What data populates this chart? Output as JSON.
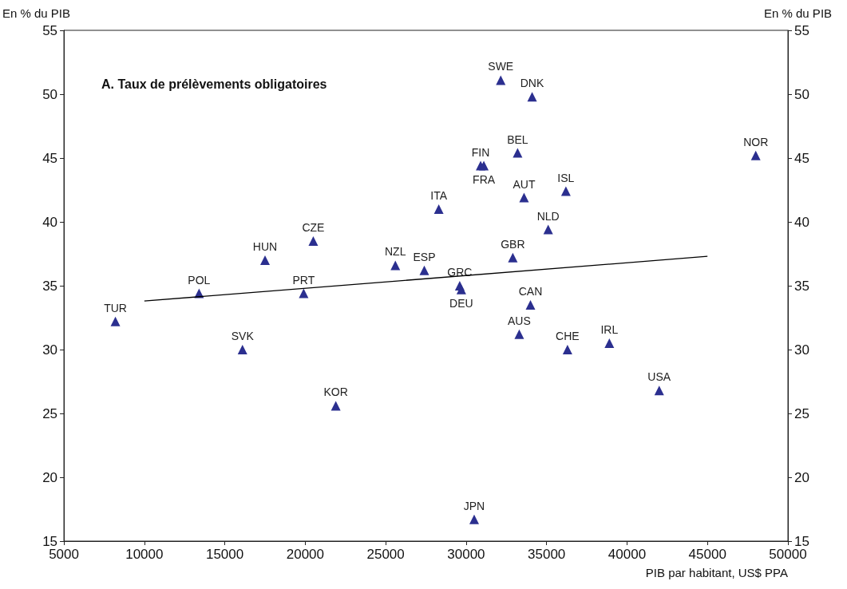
{
  "chart_data": {
    "type": "scatter",
    "title": "A. Taux de prélèvements obligatoires",
    "xlabel": "PIB par habitant, US$ PPA",
    "ylabel": "En % du PIB",
    "y2label": "En % du PIB",
    "xlim": [
      5000,
      50000
    ],
    "xticks": [
      5000,
      10000,
      15000,
      20000,
      25000,
      30000,
      35000,
      40000,
      45000,
      50000
    ],
    "ylim": [
      15,
      55
    ],
    "yticks": [
      15,
      20,
      25,
      30,
      35,
      40,
      45,
      50,
      55
    ],
    "y2lim": [
      15,
      55
    ],
    "y2ticks": [
      15,
      20,
      25,
      30,
      35,
      40,
      45,
      50,
      55
    ],
    "grid": false,
    "series": [
      {
        "color": "#2b2f8f",
        "marker": "triangle",
        "x": [
          8200,
          13400,
          16100,
          17500,
          19900,
          20500,
          21900,
          25600,
          27400,
          28300,
          29600,
          29700,
          30500,
          30900,
          31100,
          32150,
          32900,
          33200,
          33600,
          33300,
          34100,
          34000,
          35100,
          36200,
          36300,
          38900,
          42000,
          48000
        ],
        "values": [
          32.2,
          34.4,
          30.0,
          37.0,
          34.4,
          38.5,
          25.6,
          36.6,
          36.2,
          41.0,
          35.0,
          34.7,
          16.7,
          44.4,
          44.4,
          51.1,
          37.2,
          45.4,
          41.9,
          31.2,
          49.8,
          33.5,
          39.4,
          42.4,
          30.0,
          30.5,
          26.8,
          45.2
        ],
        "value_labels": [
          "TUR",
          "POL",
          "SVK",
          "HUN",
          "PRT",
          "CZE",
          "KOR",
          "NZL",
          "ESP",
          "ITA",
          "GRC",
          "DEU",
          "JPN",
          "FIN",
          "FRA",
          "SWE",
          "GBR",
          "BEL",
          "AUT",
          "AUS",
          "DNK",
          "CAN",
          "NLD",
          "ISL",
          "CHE",
          "IRL",
          "USA",
          "NOR"
        ]
      },
      {
        "type": "line",
        "color": "#000000",
        "marker": "none",
        "line_style": "solid",
        "x": [
          10000,
          45000
        ],
        "values": [
          33.8,
          37.3
        ]
      }
    ]
  }
}
